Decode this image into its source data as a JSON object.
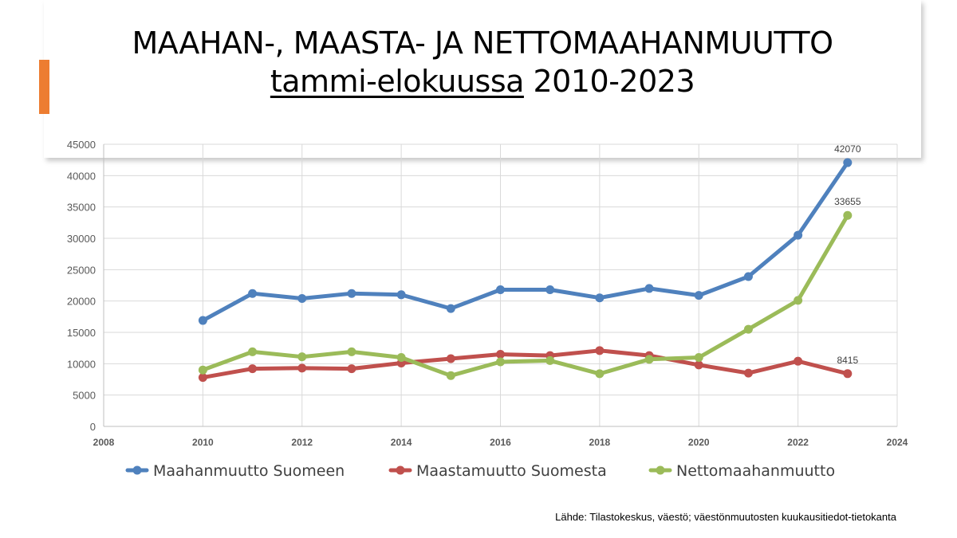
{
  "slide": {
    "title_line1": "MAAHAN-, MAASTA- JA NETTOMAAHANMUUTTO",
    "title_line2_underlined": "tammi-elokuussa",
    "title_line2_rest": " 2010-2023",
    "source": "Lähde: Tilastokeskus, väestö; väestönmuutosten kuukausitiedot-tietokanta",
    "accent_color": "#ed7d31"
  },
  "chart_data": {
    "type": "line",
    "title": "",
    "xlabel": "",
    "ylabel": "",
    "xlim": [
      2008,
      2024
    ],
    "ylim": [
      0,
      45000
    ],
    "x_ticks": [
      2008,
      2010,
      2012,
      2014,
      2016,
      2018,
      2020,
      2022,
      2024
    ],
    "y_ticks": [
      0,
      5000,
      10000,
      15000,
      20000,
      25000,
      30000,
      35000,
      40000,
      45000
    ],
    "grid": true,
    "legend_position": "bottom",
    "x": [
      2010,
      2011,
      2012,
      2013,
      2014,
      2015,
      2016,
      2017,
      2018,
      2019,
      2020,
      2021,
      2022,
      2023
    ],
    "series": [
      {
        "name": "Maahanmuutto Suomeen",
        "color": "#4f81bd",
        "values": [
          16900,
          21200,
          20400,
          21200,
          21000,
          18800,
          21800,
          21800,
          20500,
          22000,
          20900,
          23900,
          30500,
          42070
        ],
        "labels": [
          {
            "x": 2023,
            "text": "42070"
          }
        ]
      },
      {
        "name": "Maastamuutto Suomesta",
        "color": "#c0504d",
        "values": [
          7800,
          9200,
          9300,
          9200,
          10100,
          10800,
          11500,
          11300,
          12100,
          11300,
          9800,
          8500,
          10400,
          8415
        ],
        "labels": [
          {
            "x": 2023,
            "text": "8415"
          }
        ]
      },
      {
        "name": "Nettomaahanmuutto",
        "color": "#9bbb59",
        "values": [
          9000,
          11900,
          11100,
          11900,
          11000,
          8100,
          10300,
          10500,
          8400,
          10700,
          11000,
          15500,
          20100,
          33655
        ],
        "labels": [
          {
            "x": 2023,
            "text": "33655"
          }
        ]
      }
    ]
  }
}
